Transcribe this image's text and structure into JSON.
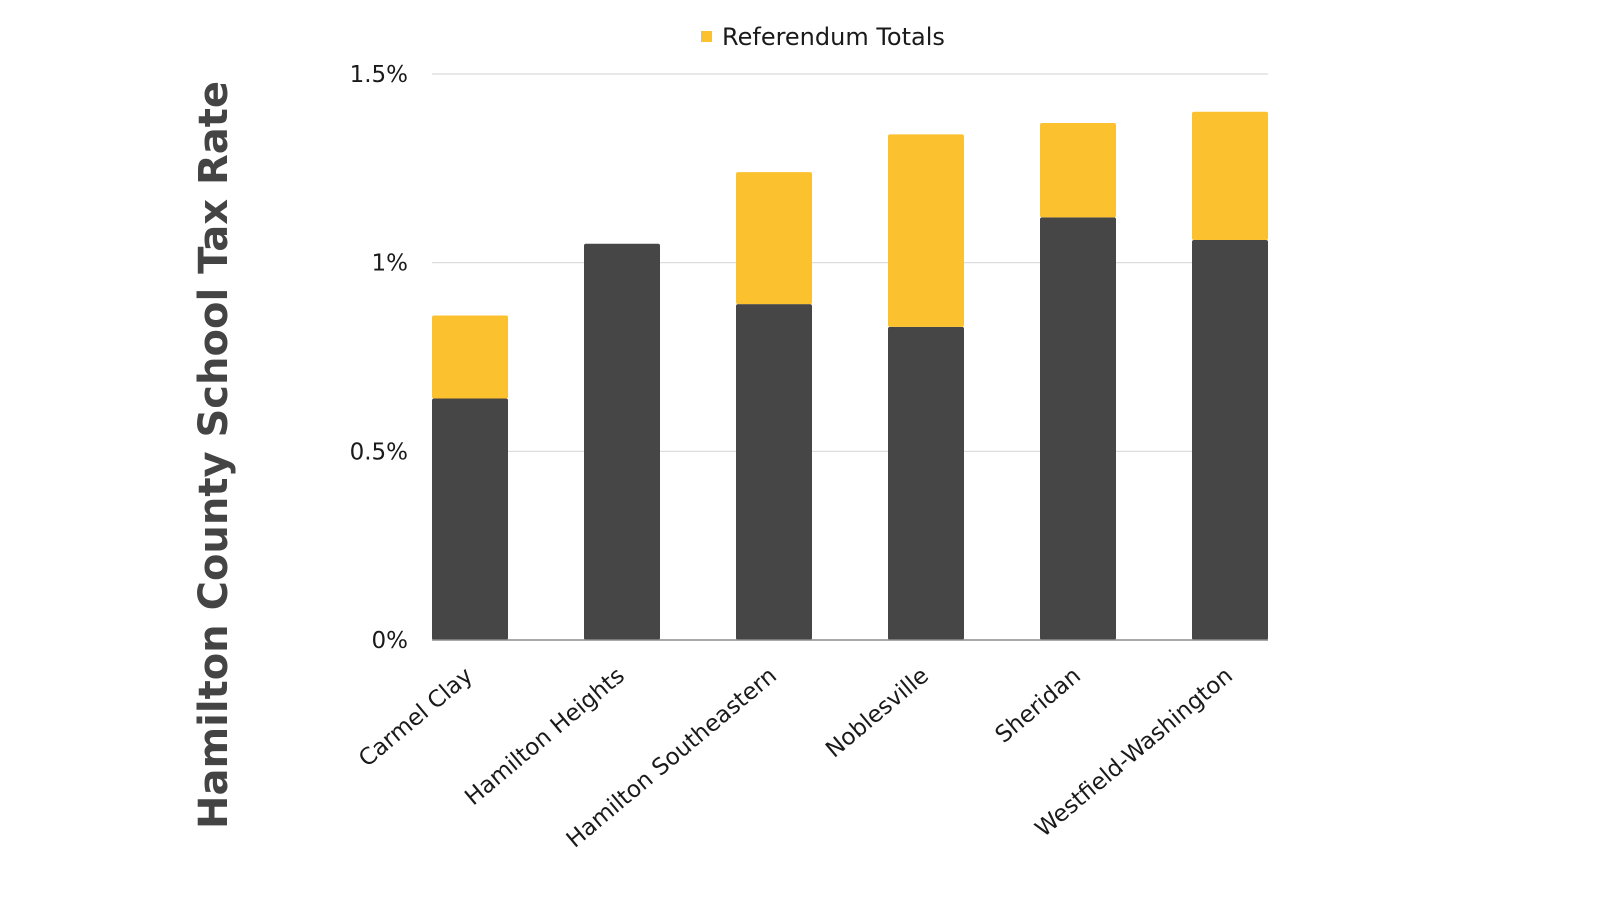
{
  "chart_data": {
    "type": "bar",
    "stacked": true,
    "title": "",
    "xlabel": "",
    "ylabel": "Hamilton County School Tax Rate",
    "categories": [
      "Carmel Clay",
      "Hamilton Heights",
      "Hamilton Southeastern",
      "Noblesville",
      "Sheridan",
      "Westfield-Washington"
    ],
    "series": [
      {
        "values": [
          0.64,
          1.05,
          0.89,
          0.83,
          1.12,
          1.06
        ],
        "color": "#464646"
      },
      {
        "name": "Referendum Totals",
        "values": [
          0.22,
          0.0,
          0.35,
          0.51,
          0.25,
          0.34
        ],
        "color": "#FCC12E"
      }
    ],
    "ylim": [
      0,
      1.5
    ],
    "yticks": [
      {
        "value": 0,
        "label": "0%"
      },
      {
        "value": 0.5,
        "label": "0.5%"
      },
      {
        "value": 1.0,
        "label": "1%"
      },
      {
        "value": 1.5,
        "label": "1.5%"
      }
    ],
    "grid": true,
    "legend": {
      "position": "top-center",
      "entries": [
        "Referendum Totals"
      ]
    }
  }
}
